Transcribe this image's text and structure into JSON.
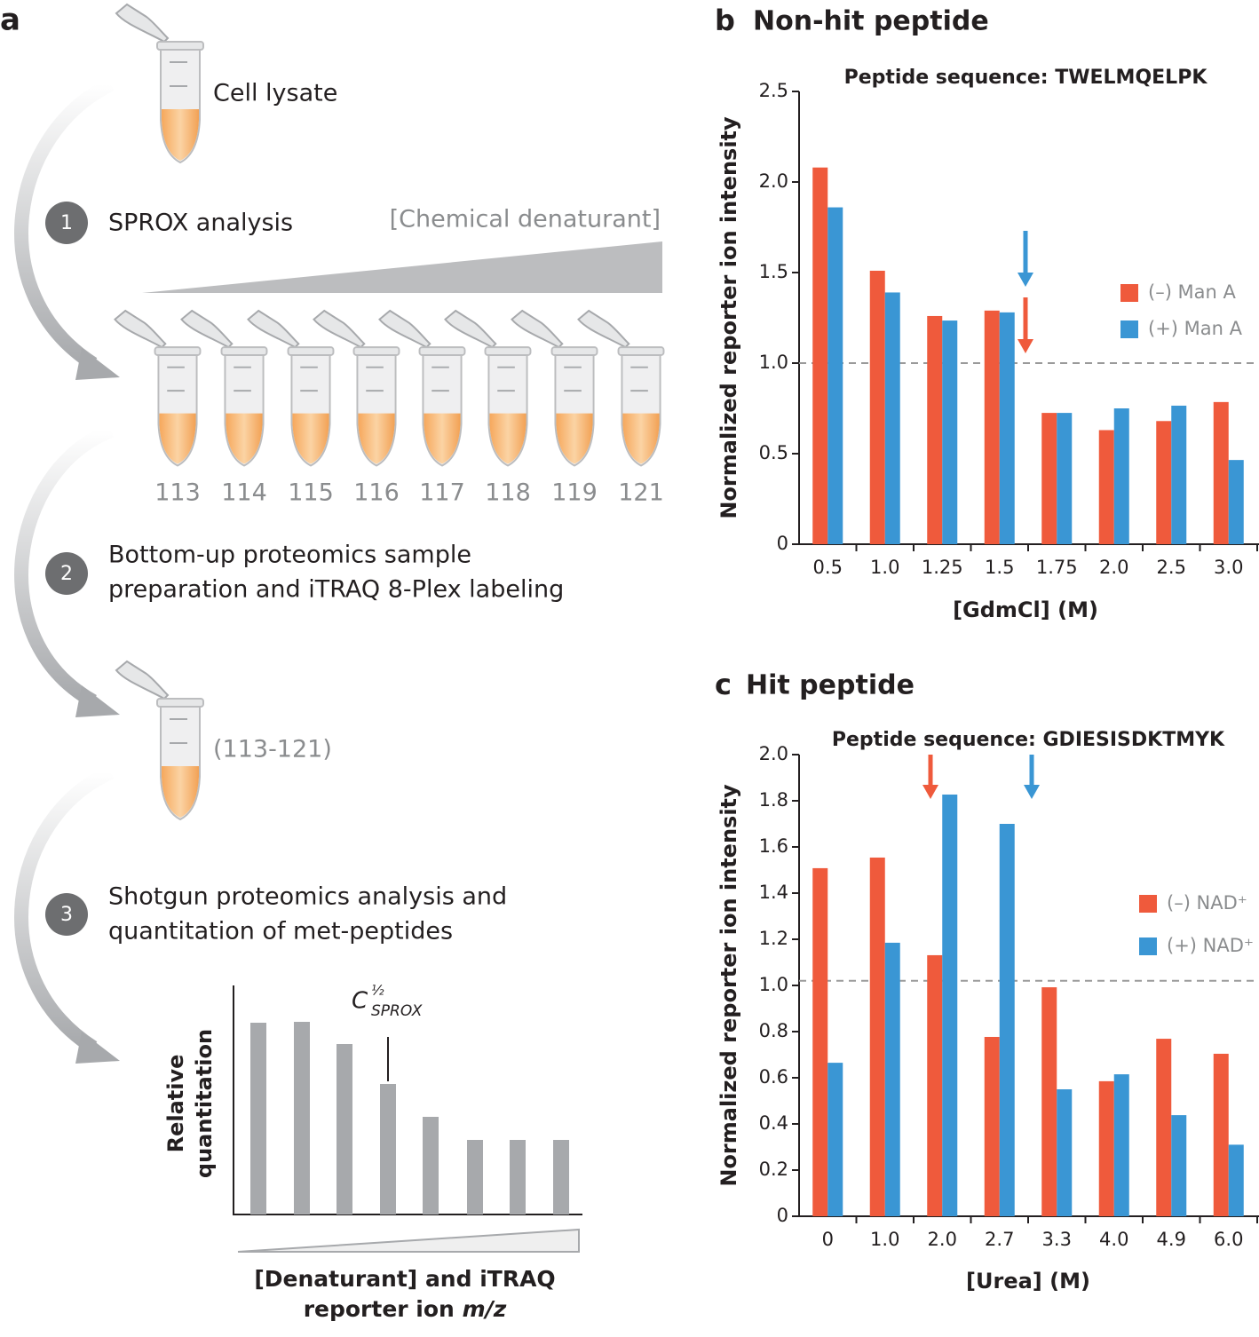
{
  "panel_a": {
    "label": "a",
    "lysate": "Cell lysate",
    "steps": [
      {
        "number": "1",
        "lines": [
          "SPROX analysis"
        ]
      },
      {
        "number": "2",
        "lines": [
          "Bottom-up proteomics sample",
          "preparation and iTRAQ 8-Plex labeling"
        ]
      },
      {
        "number": "3",
        "lines": [
          "Shotgun proteomics analysis and",
          "quantitation of met-peptides"
        ]
      }
    ],
    "gradient_label": "[Chemical denaturant]",
    "tubes": [
      "113",
      "114",
      "115",
      "116",
      "117",
      "118",
      "119",
      "121"
    ],
    "pooled": "(113-121)",
    "schematic": {
      "c_symbol": "C",
      "c_superscript": "½",
      "c_subscript": "SPROX",
      "ylabel": [
        "Relative",
        "quantitation"
      ],
      "xlabel": [
        "[Denaturant] and iTRAQ",
        "reporter ion ",
        "m/z"
      ]
    }
  },
  "chart_data": [
    {
      "type": "bar",
      "panel_label": "b",
      "title": "Non-hit peptide",
      "subtitle": "Peptide sequence: TWELMQELPK",
      "xlabel": "[GdmCl] (M)",
      "ylabel": "Normalized reporter ion intensity",
      "categories": [
        "0.5",
        "1.0",
        "1.25",
        "1.5",
        "1.75",
        "2.0",
        "2.5",
        "3.0"
      ],
      "series": [
        {
          "name": "(–) Man A",
          "color": "#ef5a3c",
          "values": [
            2.08,
            1.51,
            1.26,
            1.29,
            0.725,
            0.63,
            0.68,
            0.785
          ]
        },
        {
          "name": "(+) Man A",
          "color": "#3a96d4",
          "values": [
            1.86,
            1.39,
            1.235,
            1.28,
            0.725,
            0.75,
            0.765,
            0.465
          ]
        }
      ],
      "ylim": [
        0,
        2.5
      ],
      "yticks": [
        0,
        0.5,
        {
          "value": 1,
          "label": "1.0"
        },
        1.5,
        {
          "value": 2,
          "label": "2.0"
        },
        2.5
      ],
      "reference_line": 1.0,
      "grid": false,
      "legend": "right"
    },
    {
      "type": "bar",
      "panel_label": "c",
      "title": "Hit peptide",
      "subtitle": "Peptide sequence: GDIESISDKTMYK",
      "xlabel": "[Urea] (M)",
      "ylabel": "Normalized reporter ion intensity",
      "categories": [
        "0",
        "1.0",
        "2.0",
        "2.7",
        "3.3",
        "4.0",
        "4.9",
        "6.0"
      ],
      "series": [
        {
          "name": "(–) NAD⁺",
          "color": "#ef5a3c",
          "values": [
            1.508,
            1.554,
            1.131,
            0.777,
            0.992,
            0.585,
            0.769,
            0.704
          ]
        },
        {
          "name": "(+) NAD⁺",
          "color": "#3a96d4",
          "values": [
            0.665,
            1.185,
            1.827,
            1.7,
            0.55,
            0.615,
            0.438,
            0.31
          ]
        }
      ],
      "ylim": [
        0,
        2
      ],
      "yticks": [
        0,
        0.2,
        0.4,
        0.6,
        0.8,
        {
          "value": 1,
          "label": "1.0"
        },
        1.2,
        1.4,
        1.6,
        1.8,
        {
          "value": 2,
          "label": "2.0"
        }
      ],
      "reference_line": 1.02,
      "grid": false,
      "legend": "right"
    }
  ]
}
